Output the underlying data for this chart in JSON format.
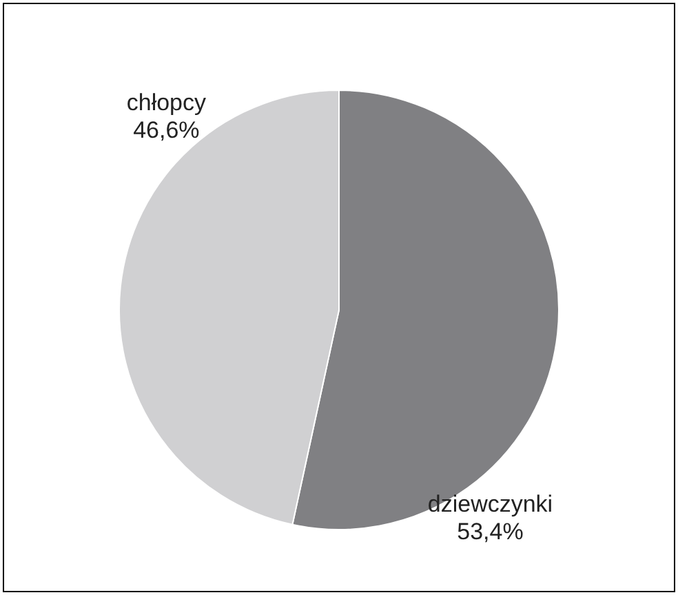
{
  "chart_data": {
    "type": "pie",
    "categories": [
      "dziewczynki",
      "chłopcy"
    ],
    "values": [
      53.4,
      46.6
    ],
    "colors": [
      "#808083",
      "#d0d0d2"
    ],
    "value_labels": [
      "53,4%",
      "46,6%"
    ],
    "legend": false
  }
}
